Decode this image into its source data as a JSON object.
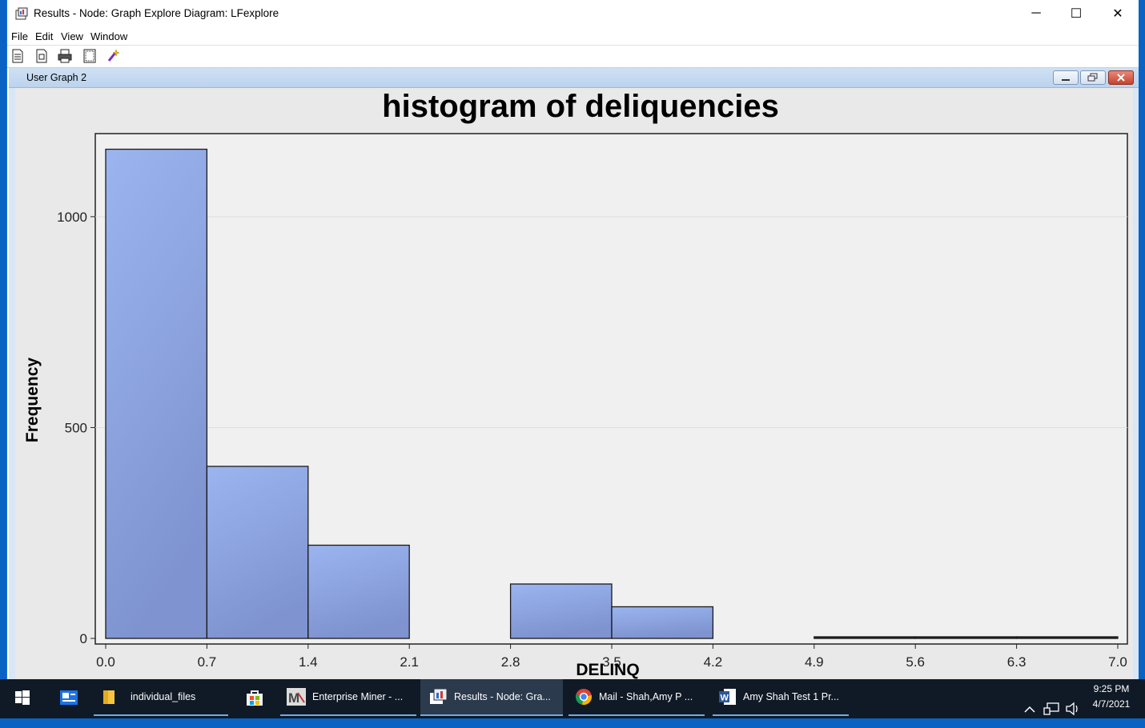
{
  "window": {
    "title": "Results - Node: Graph Explore  Diagram: LFexplore",
    "minimize_glyph": "─",
    "maximize_glyph": "☐",
    "close_glyph": "✕"
  },
  "menu": [
    "File",
    "Edit",
    "View",
    "Window"
  ],
  "toolbar_icons": [
    "new-document-icon",
    "properties-icon",
    "print-icon",
    "page-setup-icon",
    "wizard-icon"
  ],
  "inner_window": {
    "title": "User Graph 2"
  },
  "chart_data": {
    "type": "bar",
    "title": "histogram of deliquencies",
    "xlabel": "DELINQ",
    "ylabel": "Frequency",
    "bins": [
      {
        "x0": 0.0,
        "x1": 0.7,
        "value": 1160
      },
      {
        "x0": 0.7,
        "x1": 1.4,
        "value": 408
      },
      {
        "x0": 1.4,
        "x1": 2.1,
        "value": 221
      },
      {
        "x0": 2.1,
        "x1": 2.8,
        "value": 0
      },
      {
        "x0": 2.8,
        "x1": 3.5,
        "value": 129
      },
      {
        "x0": 3.5,
        "x1": 4.2,
        "value": 75
      },
      {
        "x0": 4.2,
        "x1": 4.9,
        "value": 0
      },
      {
        "x0": 4.9,
        "x1": 5.6,
        "value": 2
      },
      {
        "x0": 5.6,
        "x1": 6.3,
        "value": 2
      },
      {
        "x0": 6.3,
        "x1": 7.0,
        "value": 2
      }
    ],
    "xticks": [
      "0.0",
      "0.7",
      "1.4",
      "2.1",
      "2.8",
      "3.5",
      "4.2",
      "4.9",
      "5.6",
      "6.3",
      "7.0"
    ],
    "yticks": [
      0,
      500,
      1000
    ],
    "xlim": [
      0.0,
      7.0
    ],
    "ylim": [
      0,
      1180
    ],
    "grid": true,
    "bar_color": "#8fa8e6",
    "bar_edge": "#1a1a1a"
  },
  "taskbar": {
    "items": [
      {
        "label": "",
        "icon": "windows-start-icon"
      },
      {
        "label": "",
        "icon": "news-icon"
      },
      {
        "label": "individual_files",
        "icon": "folder-icon"
      },
      {
        "label": "",
        "icon": "store-icon"
      },
      {
        "label": "Enterprise Miner - ...",
        "icon": "enterprise-miner-icon"
      },
      {
        "label": "Results - Node: Gra...",
        "icon": "results-icon"
      },
      {
        "label": "Mail - Shah,Amy P ...",
        "icon": "chrome-icon"
      },
      {
        "label": "Amy Shah Test 1 Pr...",
        "icon": "word-icon"
      }
    ],
    "time": "9:25 PM",
    "date": "4/7/2021"
  }
}
